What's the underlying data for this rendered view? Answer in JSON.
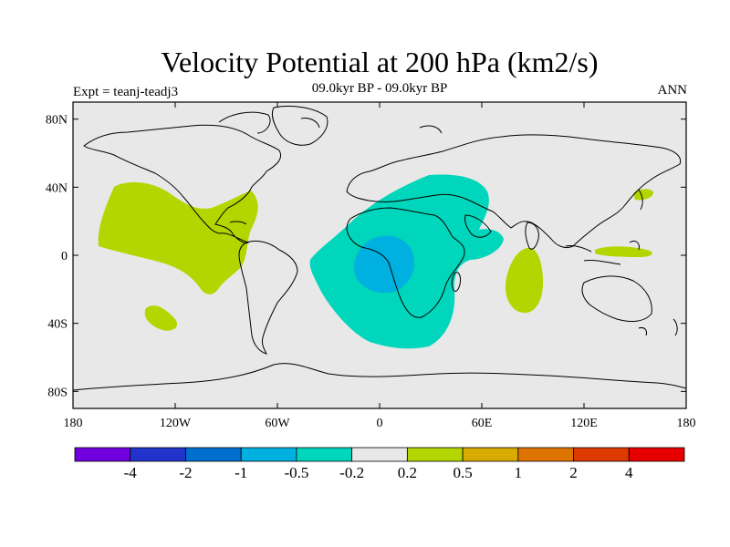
{
  "title": "Velocity Potential at 200 hPa (km2/s)",
  "subtitle": "09.0kyr BP - 09.0kyr BP",
  "left_label": "Expt = teanj-teadj3",
  "right_label": "ANN",
  "lat_ticks": [
    "80N",
    "40N",
    "0",
    "40S",
    "80S"
  ],
  "lon_ticks": [
    "180",
    "120W",
    "60W",
    "0",
    "60E",
    "120E",
    "180"
  ],
  "colorbar": {
    "labels": [
      "-4",
      "-2",
      "-1",
      "-0.5",
      "-0.2",
      "0.2",
      "0.5",
      "1",
      "2",
      "4"
    ],
    "colors": [
      "#7000dd",
      "#2233cc",
      "#0070d0",
      "#00b0e0",
      "#00d6bb",
      "#e8e8e8",
      "#b3d600",
      "#d8ab00",
      "#dd7300",
      "#dd3a00",
      "#e80000"
    ]
  },
  "fields": {
    "ocean_color": "#e8e8e8",
    "neg_02_color": "#00d6bb",
    "neg_05_color": "#00b0e0",
    "pos_02_color": "#b3d600"
  }
}
